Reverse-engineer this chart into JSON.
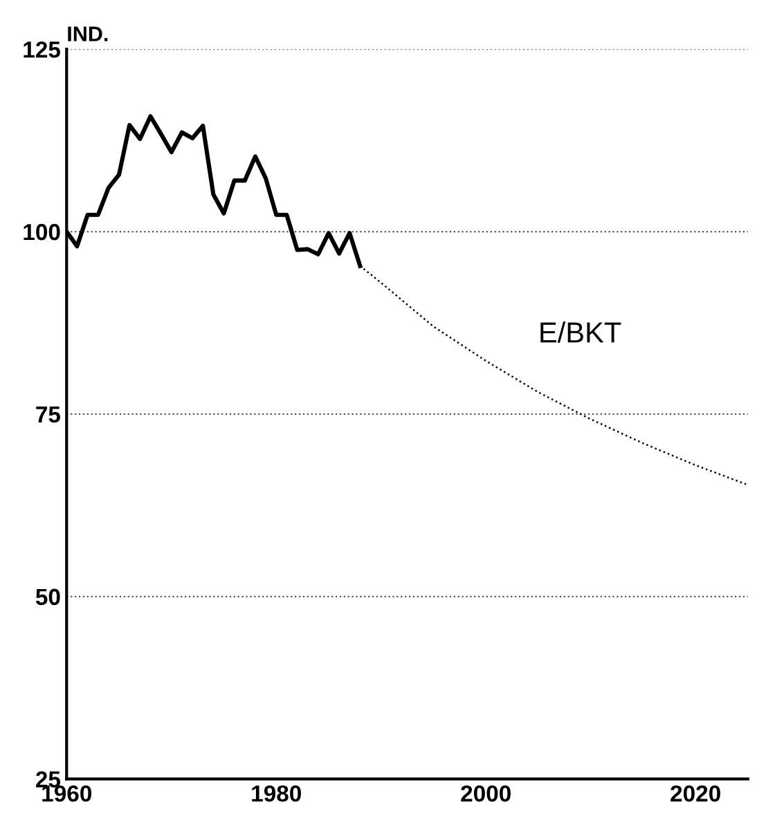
{
  "chart_data": {
    "type": "line",
    "ylabel": "IND.",
    "xlim": [
      1960,
      2025
    ],
    "xticks": [
      1960,
      1980,
      2000,
      2020
    ],
    "ylim": [
      25,
      125
    ],
    "yticks": [
      25,
      50,
      75,
      100,
      125
    ],
    "grid": "y",
    "legend": false,
    "marker": "none",
    "series": [
      {
        "color": "#000000",
        "line_style": "solid",
        "x": [
          1960,
          1961,
          1962,
          1963,
          1964,
          1965,
          1966,
          1967,
          1968,
          1969,
          1970,
          1971,
          1972,
          1973,
          1974,
          1975,
          1976,
          1977,
          1978,
          1979,
          1980,
          1981,
          1982,
          1983,
          1984,
          1985,
          1986,
          1987,
          1988
        ],
        "values": [
          100,
          98,
          102.3,
          102.3,
          106,
          107.8,
          114.6,
          112.7,
          115.8,
          113.4,
          110.9,
          113.6,
          112.8,
          114.5,
          105.1,
          102.5,
          107,
          107,
          110.3,
          107.3,
          102.3,
          102.3,
          97.5,
          97.6,
          96.9,
          99.8,
          97,
          99.8,
          95.3
        ]
      },
      {
        "name": "E/BKT",
        "color": "#000000",
        "line_style": "dotted",
        "x": [
          1988,
          1990,
          1995,
          2000,
          2005,
          2010,
          2015,
          2020,
          2025
        ],
        "values": [
          95.3,
          93,
          87,
          82.3,
          78,
          74.3,
          71,
          68,
          65.3
        ]
      }
    ]
  }
}
